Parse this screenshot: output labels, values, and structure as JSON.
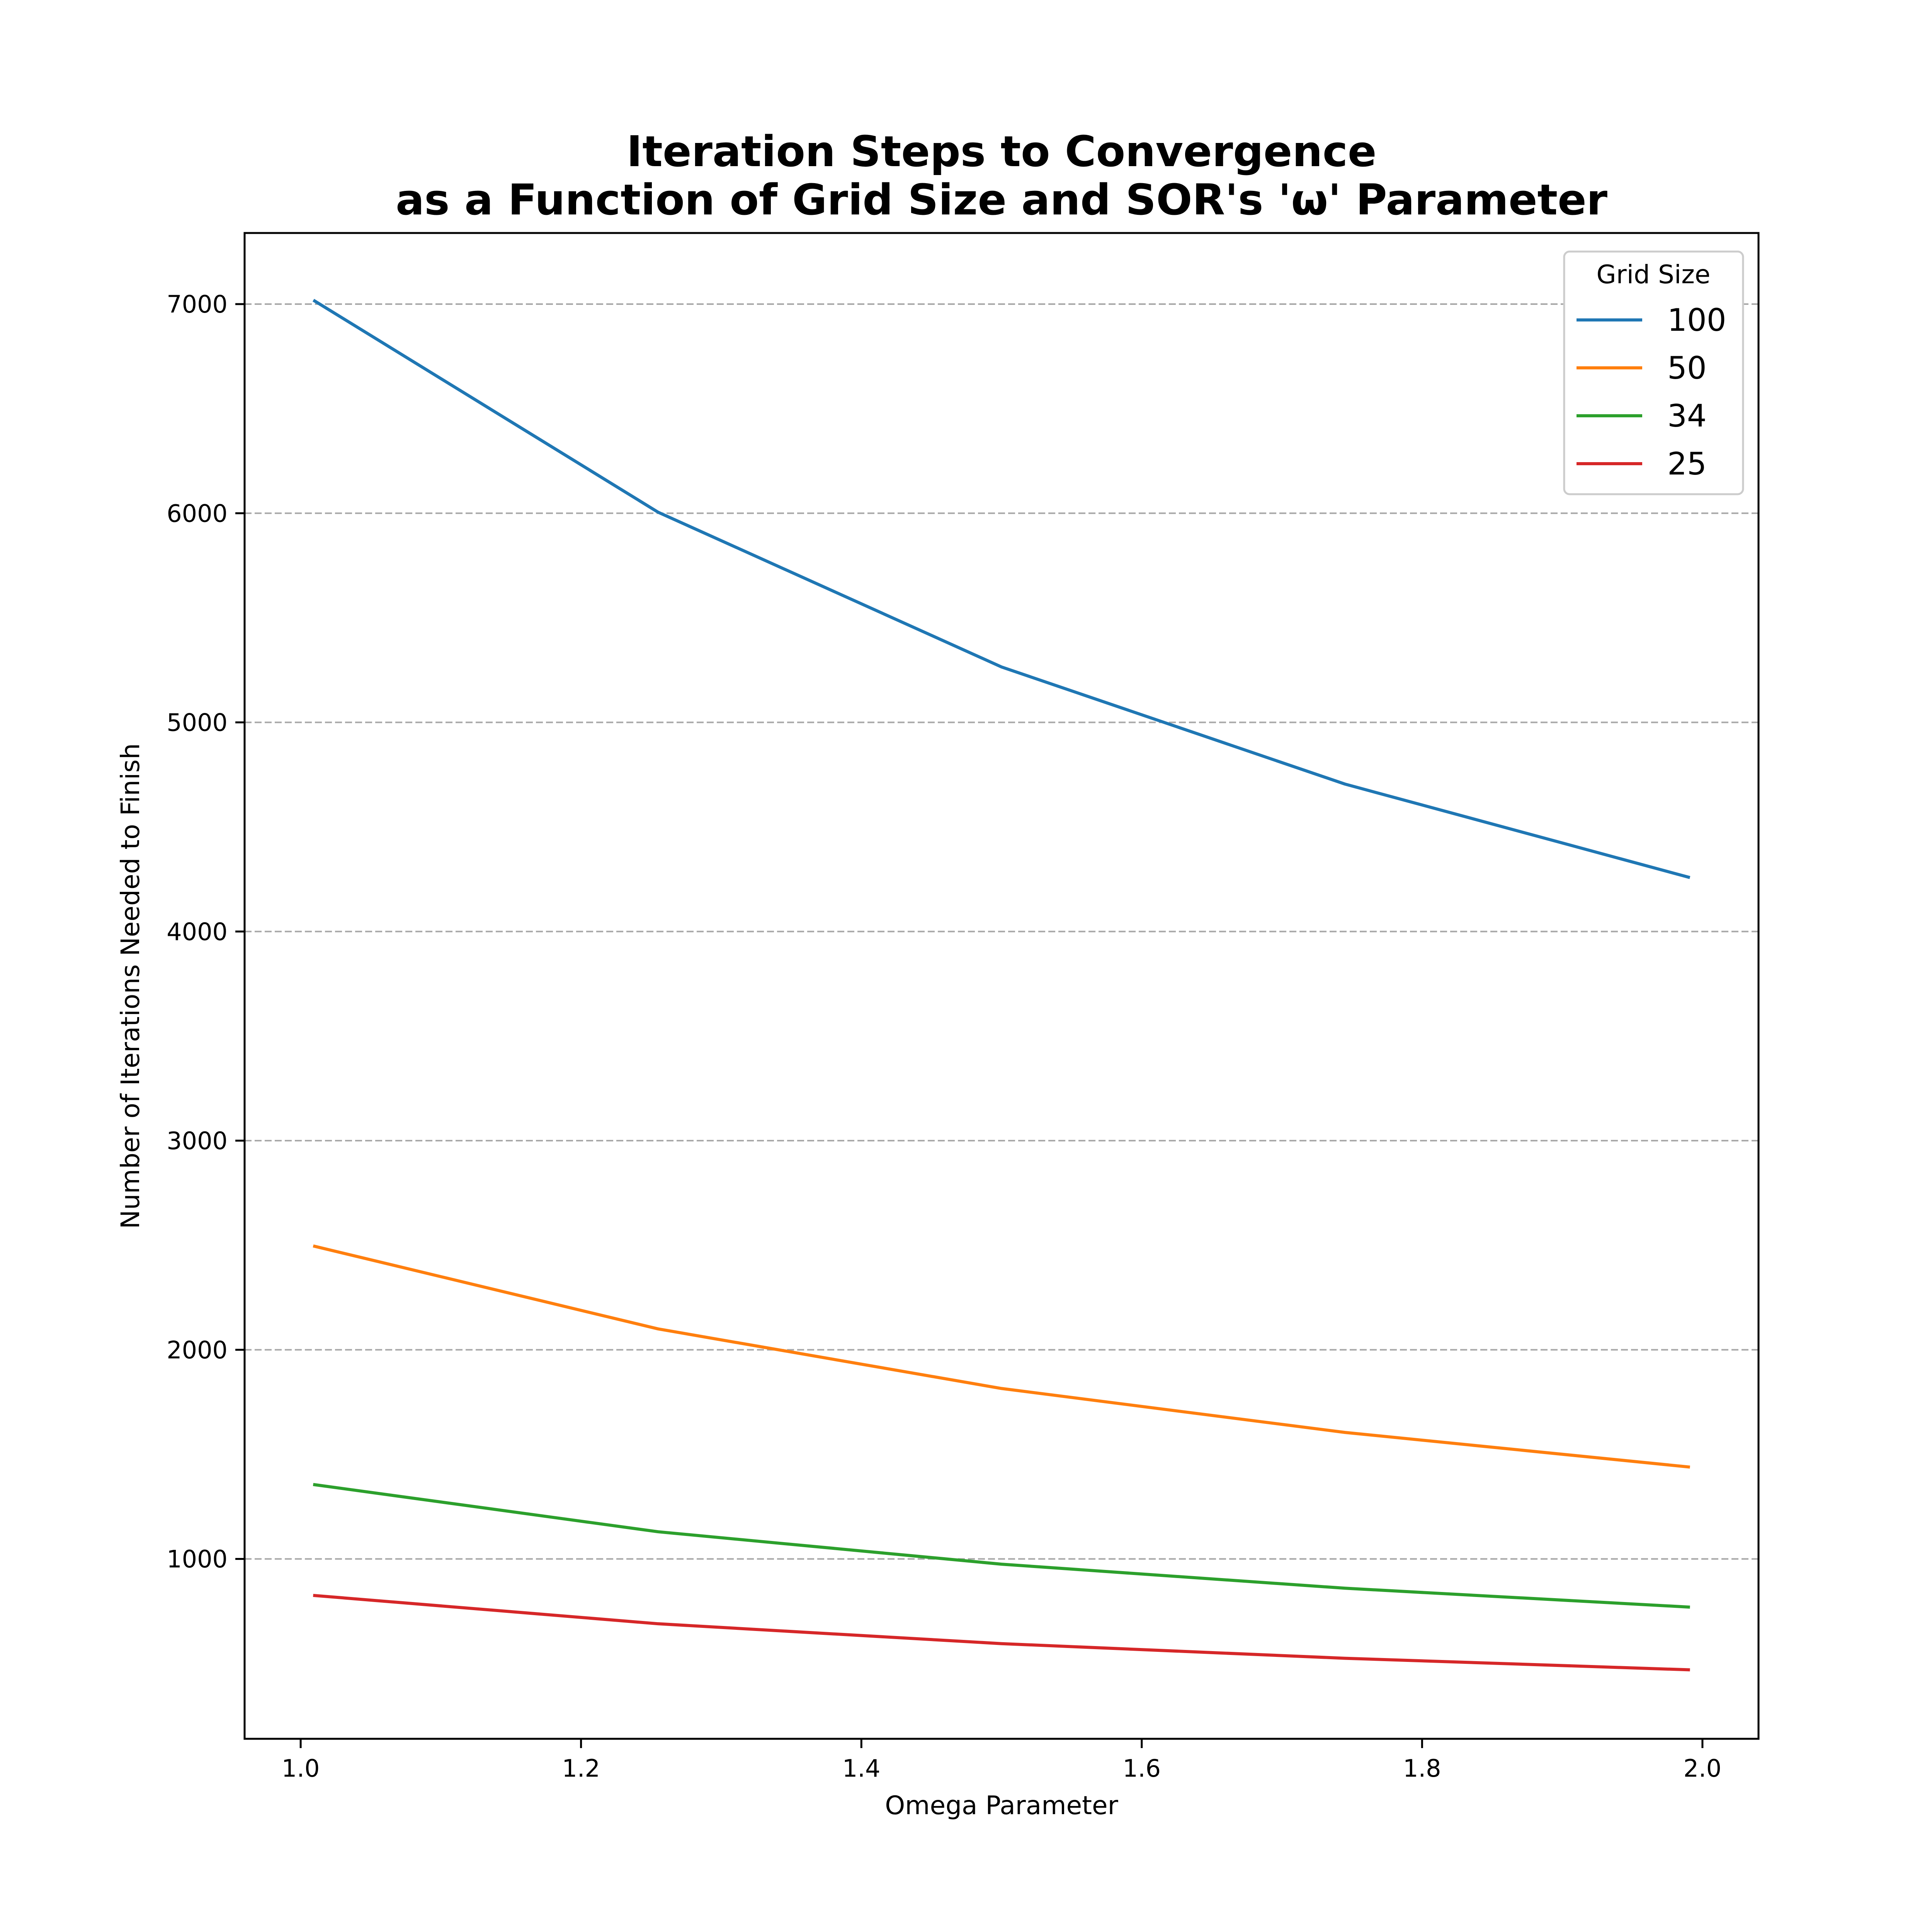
{
  "chart_data": {
    "type": "line",
    "title_line1": "Iteration Steps to Convergence",
    "title_line2": "as a Function of Grid Size and SOR's 'ω' Parameter",
    "xlabel": "Omega Parameter",
    "ylabel": "Number of Iterations Needed to Finish",
    "xlim": [
      0.96,
      2.04
    ],
    "ylim": [
      140,
      7340
    ],
    "xticks": [
      1.0,
      1.2,
      1.4,
      1.6,
      1.8,
      2.0
    ],
    "xtick_labels": [
      "1.0",
      "1.2",
      "1.4",
      "1.6",
      "1.8",
      "2.0"
    ],
    "yticks": [
      1000,
      2000,
      3000,
      4000,
      5000,
      6000,
      7000
    ],
    "ytick_labels": [
      "1000",
      "2000",
      "3000",
      "4000",
      "5000",
      "6000",
      "7000"
    ],
    "grid": "horizontal dashed",
    "legend_title": "Grid Size",
    "legend_position": "top-right",
    "x": [
      1.01,
      1.255,
      1.5,
      1.745,
      1.99
    ],
    "series": [
      {
        "name": "100",
        "color": "#1f77b4",
        "values": [
          7015,
          6005,
          5265,
          4705,
          4260
        ]
      },
      {
        "name": "50",
        "color": "#ff7f0e",
        "values": [
          2495,
          2100,
          1815,
          1605,
          1440
        ]
      },
      {
        "name": "34",
        "color": "#2ca02c",
        "values": [
          1355,
          1130,
          975,
          860,
          770
        ]
      },
      {
        "name": "25",
        "color": "#d62728",
        "values": [
          825,
          690,
          595,
          525,
          470
        ]
      }
    ],
    "grid_color": "#a8a8a8"
  }
}
